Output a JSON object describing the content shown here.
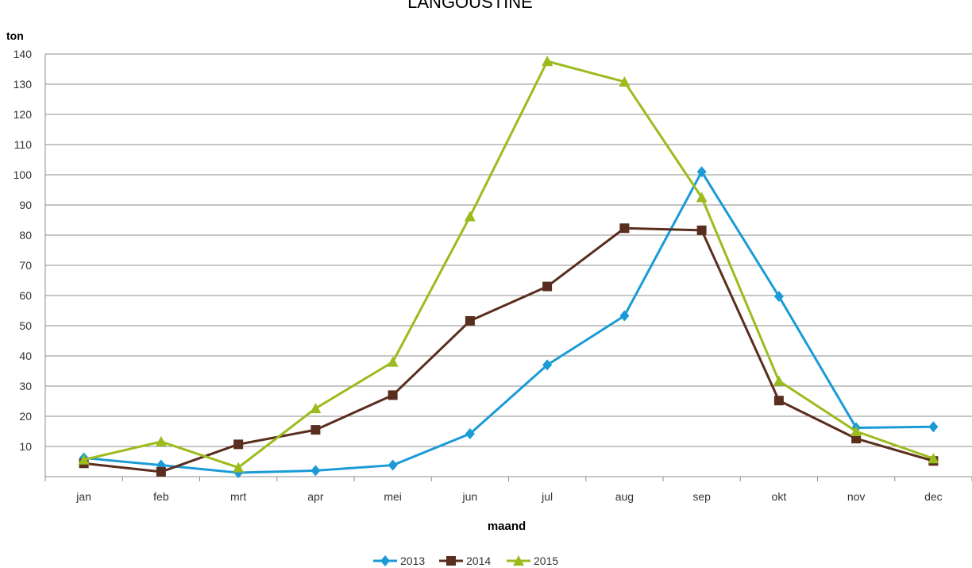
{
  "chart_data": {
    "type": "line",
    "title": "LANGOUSTINE",
    "ylabel": "ton",
    "xlabel": "maand",
    "categories": [
      "jan",
      "feb",
      "mrt",
      "apr",
      "mei",
      "jun",
      "jul",
      "aug",
      "sep",
      "okt",
      "nov",
      "dec"
    ],
    "yticks": [
      10,
      20,
      30,
      40,
      50,
      60,
      70,
      80,
      90,
      100,
      110,
      120,
      130,
      140
    ],
    "ylim": [
      0,
      140
    ],
    "grid": true,
    "legend_position": "bottom",
    "series": [
      {
        "name": "2013",
        "color": "#1a9bd7",
        "marker": "diamond",
        "values": [
          6.2,
          3.8,
          1.3,
          2.0,
          3.8,
          14.2,
          37.0,
          53.3,
          101.0,
          59.7,
          16.2,
          16.5
        ]
      },
      {
        "name": "2014",
        "color": "#5a2e1e",
        "marker": "square",
        "values": [
          4.4,
          1.6,
          10.7,
          15.5,
          27.0,
          51.6,
          63.0,
          82.3,
          81.6,
          25.2,
          12.6,
          5.2
        ]
      },
      {
        "name": "2015",
        "color": "#9cbb1c",
        "marker": "triangle",
        "values": [
          5.6,
          11.6,
          3.0,
          22.6,
          38.0,
          86.2,
          137.6,
          130.8,
          92.5,
          31.7,
          15.0,
          6.0
        ]
      }
    ]
  }
}
